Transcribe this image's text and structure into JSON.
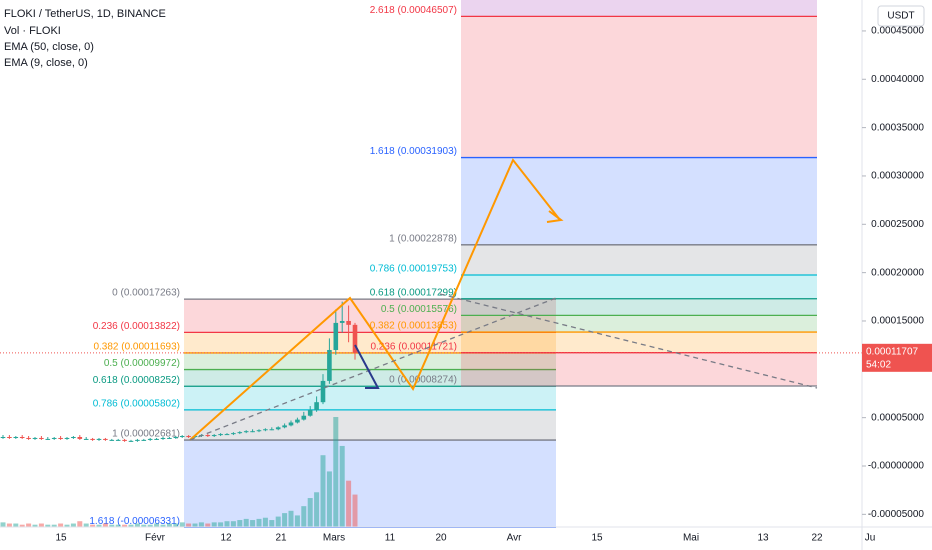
{
  "chart_data": {
    "type": "candlestick",
    "title": "FLOKI / TetherUS, 1D, BINANCE",
    "indicators": [
      "Vol · FLOKI",
      "EMA (50, close, 0)",
      "EMA (9, close, 0)"
    ],
    "currency": "USDT",
    "ylim": [
      -6.31e-05,
      0.000482
    ],
    "yticks": [
      {
        "value": 0.00045,
        "label": "0.00045000"
      },
      {
        "value": 0.0004,
        "label": "0.00040000"
      },
      {
        "value": 0.00035,
        "label": "0.00035000"
      },
      {
        "value": 0.0003,
        "label": "0.00030000"
      },
      {
        "value": 0.00025,
        "label": "0.00025000"
      },
      {
        "value": 0.0002,
        "label": "0.00020000"
      },
      {
        "value": 0.00015,
        "label": "0.00015000"
      },
      {
        "value": 5e-05,
        "label": "0.00005000"
      },
      {
        "value": 0,
        "label": "-0.00000000"
      },
      {
        "value": -5e-05,
        "label": "-0.00005000"
      }
    ],
    "xlabels": [
      "15",
      "Févr",
      "12",
      "21",
      "Mars",
      "11",
      "20",
      "Avr",
      "15",
      "Mai",
      "13",
      "22",
      "Ju"
    ],
    "current_price": {
      "value": 0.00011707,
      "label": "0.00011707"
    },
    "countdown": "54:02",
    "up_color": "#26a69a",
    "down_color": "#ef5350",
    "open": [
      2.9e-05,
      3e-05,
      2.9e-05,
      3e-05,
      2.9e-05,
      2.8e-05,
      2.9e-05,
      2.8e-05,
      2.8e-05,
      2.9e-05,
      2.8e-05,
      2.9e-05,
      3e-05,
      2.8e-05,
      2.8e-05,
      2.7e-05,
      2.8e-05,
      2.7e-05,
      2.7e-05,
      2.7e-05,
      2.6e-05,
      2.6e-05,
      2.7e-05,
      2.7e-05,
      2.8e-05,
      2.8e-05,
      2.9e-05,
      2.9e-05,
      3e-05,
      3.1e-05,
      3e-05,
      3.1e-05,
      3.2e-05,
      3.1e-05,
      3.2e-05,
      3.3e-05,
      3.3e-05,
      3.4e-05,
      3.5e-05,
      3.6e-05,
      3.6e-05,
      3.7e-05,
      3.8e-05,
      3.8e-05,
      4e-05,
      4.2e-05,
      4.5e-05,
      4.8e-05,
      5.2e-05,
      5.8e-05,
      6.6e-05,
      8.8e-05,
      0.00012,
      0.000148,
      0.00015,
      0.000146
    ],
    "close": [
      3e-05,
      2.9e-05,
      3e-05,
      2.9e-05,
      2.8e-05,
      2.9e-05,
      2.8e-05,
      2.8e-05,
      2.9e-05,
      2.8e-05,
      2.9e-05,
      3e-05,
      2.8e-05,
      2.8e-05,
      2.7e-05,
      2.8e-05,
      2.7e-05,
      2.7e-05,
      2.7e-05,
      2.6e-05,
      2.6e-05,
      2.7e-05,
      2.7e-05,
      2.8e-05,
      2.8e-05,
      2.9e-05,
      2.9e-05,
      3e-05,
      3.1e-05,
      3e-05,
      3.1e-05,
      3.2e-05,
      3.1e-05,
      3.2e-05,
      3.3e-05,
      3.3e-05,
      3.4e-05,
      3.5e-05,
      3.6e-05,
      3.6e-05,
      3.7e-05,
      3.8e-05,
      3.8e-05,
      4e-05,
      4.2e-05,
      4.5e-05,
      4.8e-05,
      5.2e-05,
      5.8e-05,
      6.6e-05,
      8.8e-05,
      0.00012,
      0.000148,
      0.00015,
      0.000146,
      0.000117
    ],
    "high": [
      3.2e-05,
      3.2e-05,
      3.1e-05,
      3.2e-05,
      3.1e-05,
      3e-05,
      3.1e-05,
      3e-05,
      3e-05,
      3.1e-05,
      3e-05,
      3.1e-05,
      3.2e-05,
      3e-05,
      2.9e-05,
      2.9e-05,
      2.9e-05,
      2.8e-05,
      2.8e-05,
      2.8e-05,
      2.7e-05,
      2.8e-05,
      2.8e-05,
      2.9e-05,
      2.9e-05,
      3e-05,
      3e-05,
      3.1e-05,
      3.2e-05,
      3.2e-05,
      3.2e-05,
      3.3e-05,
      3.3e-05,
      3.3e-05,
      3.4e-05,
      3.4e-05,
      3.5e-05,
      3.6e-05,
      3.7e-05,
      3.8e-05,
      3.8e-05,
      3.9e-05,
      4e-05,
      4.1e-05,
      4.4e-05,
      4.7e-05,
      5e-05,
      5.6e-05,
      6.2e-05,
      7.2e-05,
      9.5e-05,
      0.000132,
      0.000162,
      0.00017,
      0.000166,
      0.000148
    ],
    "low": [
      2.8e-05,
      2.8e-05,
      2.8e-05,
      2.8e-05,
      2.7e-05,
      2.7e-05,
      2.7e-05,
      2.7e-05,
      2.7e-05,
      2.7e-05,
      2.7e-05,
      2.8e-05,
      2.7e-05,
      2.7e-05,
      2.6e-05,
      2.6e-05,
      2.6e-05,
      2.6e-05,
      2.6e-05,
      2.5e-05,
      2.5e-05,
      2.5e-05,
      2.6e-05,
      2.6e-05,
      2.7e-05,
      2.7e-05,
      2.8e-05,
      2.8e-05,
      2.9e-05,
      2.9e-05,
      2.9e-05,
      3e-05,
      3e-05,
      3e-05,
      3.1e-05,
      3.2e-05,
      3.2e-05,
      3.3e-05,
      3.4e-05,
      3.5e-05,
      3.5e-05,
      3.6e-05,
      3.7e-05,
      3.7e-05,
      3.9e-05,
      4.1e-05,
      4.4e-05,
      4.7e-05,
      5.1e-05,
      5.6e-05,
      6.4e-05,
      8.5e-05,
      0.000115,
      0.000138,
      0.000128,
      0.00011
    ],
    "volume": [
      4,
      3,
      3,
      2,
      3,
      2,
      3,
      2,
      2,
      3,
      2,
      3,
      5,
      3,
      2,
      2,
      3,
      2,
      2,
      2,
      2,
      3,
      2,
      2,
      3,
      2,
      3,
      3,
      4,
      3,
      3,
      4,
      3,
      4,
      4,
      5,
      5,
      6,
      7,
      6,
      7,
      8,
      6,
      9,
      12,
      14,
      10,
      18,
      25,
      30,
      62,
      48,
      95,
      70,
      40,
      28
    ],
    "fibs": [
      {
        "levels": [
          {
            "label": "0 (0.00017263)",
            "value": 0.00017263,
            "color": "#787b86"
          },
          {
            "label": "0.236 (0.00013822)",
            "value": 0.00013822,
            "color": "#f23645"
          },
          {
            "label": "0.382 (0.00011693)",
            "value": 0.00011693,
            "color": "#ff9800"
          },
          {
            "label": "0.5 (0.00009972)",
            "value": 9.972e-05,
            "color": "#4caf50"
          },
          {
            "label": "0.618 (0.00008252)",
            "value": 8.252e-05,
            "color": "#089981"
          },
          {
            "label": "0.786 (0.00005802)",
            "value": 5.802e-05,
            "color": "#00bcd4"
          },
          {
            "label": "1 (0.00002681)",
            "value": 2.681e-05,
            "color": "#787b86"
          },
          {
            "label": "1.618 (-0.00006331)",
            "value": -6.331e-05,
            "color": "#2962ff"
          }
        ]
      },
      {
        "levels": [
          {
            "label": "0 (0.00008274)",
            "value": 8.274e-05,
            "color": "#787b86"
          },
          {
            "label": "0.236 (0.00011721)",
            "value": 0.00011721,
            "color": "#f23645"
          },
          {
            "label": "0.382 (0.00013853)",
            "value": 0.00013853,
            "color": "#ff9800"
          },
          {
            "label": "0.5 (0.00015576)",
            "value": 0.00015576,
            "color": "#4caf50"
          },
          {
            "label": "0.618 (0.00017299)",
            "value": 0.00017299,
            "color": "#089981"
          },
          {
            "label": "0.786 (0.00019753)",
            "value": 0.00019753,
            "color": "#00bcd4"
          },
          {
            "label": "1 (0.00022878)",
            "value": 0.00022878,
            "color": "#787b86"
          },
          {
            "label": "1.618 (0.00031903)",
            "value": 0.00031903,
            "color": "#2962ff"
          },
          {
            "label": "2.618 (0.00046507)",
            "value": 0.00046507,
            "color": "#f23645"
          }
        ]
      }
    ]
  }
}
